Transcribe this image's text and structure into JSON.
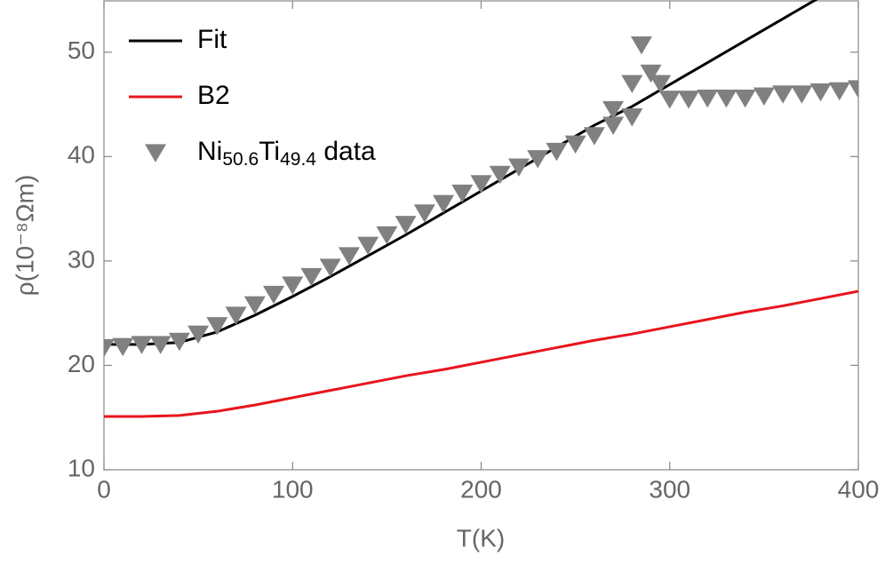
{
  "chart_data": {
    "type": "line",
    "xlabel": "T(K)",
    "ylabel": "ρ(10⁻⁸Ωm)",
    "xlim": [
      0,
      400
    ],
    "ylim": [
      10,
      55
    ],
    "xticks": [
      0,
      100,
      200,
      300,
      400
    ],
    "yticks": [
      10,
      20,
      30,
      40,
      50
    ],
    "legend": "top-left",
    "series": [
      {
        "name": "Fit",
        "color": "#000000",
        "mode": "line",
        "x": [
          0,
          20,
          40,
          60,
          80,
          100,
          120,
          140,
          160,
          180,
          200,
          220,
          240,
          260,
          280,
          300,
          320,
          340,
          360,
          380
        ],
        "values": [
          22,
          22,
          22.2,
          23.2,
          24.8,
          26.6,
          28.5,
          30.5,
          32.5,
          34.6,
          36.7,
          38.8,
          40.9,
          43.0,
          44.8,
          46.9,
          49.0,
          51.1,
          53.2,
          55.3
        ]
      },
      {
        "name": "B2",
        "color": "#e8141c",
        "mode": "line",
        "x": [
          0,
          20,
          40,
          60,
          80,
          100,
          120,
          140,
          160,
          180,
          200,
          220,
          240,
          260,
          280,
          300,
          320,
          340,
          360,
          380,
          400
        ],
        "values": [
          15.1,
          15.1,
          15.2,
          15.6,
          16.2,
          16.9,
          17.6,
          18.3,
          19.0,
          19.6,
          20.3,
          21.0,
          21.7,
          22.4,
          23.0,
          23.7,
          24.4,
          25.1,
          25.7,
          26.4,
          27.1
        ]
      },
      {
        "name": "Ni50.6Ti49.4 data",
        "color": "#808080",
        "mode": "markers",
        "x": [
          0,
          10,
          20,
          30,
          40,
          50,
          60,
          70,
          80,
          90,
          100,
          110,
          120,
          130,
          140,
          150,
          160,
          170,
          180,
          190,
          200,
          210,
          220,
          230,
          240,
          250,
          260,
          270,
          280,
          285,
          290,
          295,
          300,
          270,
          280,
          310,
          320,
          330,
          340,
          350,
          360,
          370,
          380,
          390,
          400
        ],
        "values": [
          21.7,
          21.8,
          22,
          22,
          22.3,
          23,
          23.8,
          24.8,
          25.8,
          26.8,
          27.7,
          28.5,
          29.4,
          30.5,
          31.5,
          32.5,
          33.5,
          34.6,
          35.5,
          36.5,
          37.4,
          38.3,
          39,
          39.8,
          40.5,
          41.2,
          42,
          43,
          43.8,
          50.7,
          48,
          47,
          45.5,
          44.5,
          47,
          45.5,
          45.6,
          45.6,
          45.6,
          45.8,
          46,
          46,
          46.2,
          46.3,
          46.5
        ]
      }
    ]
  }
}
